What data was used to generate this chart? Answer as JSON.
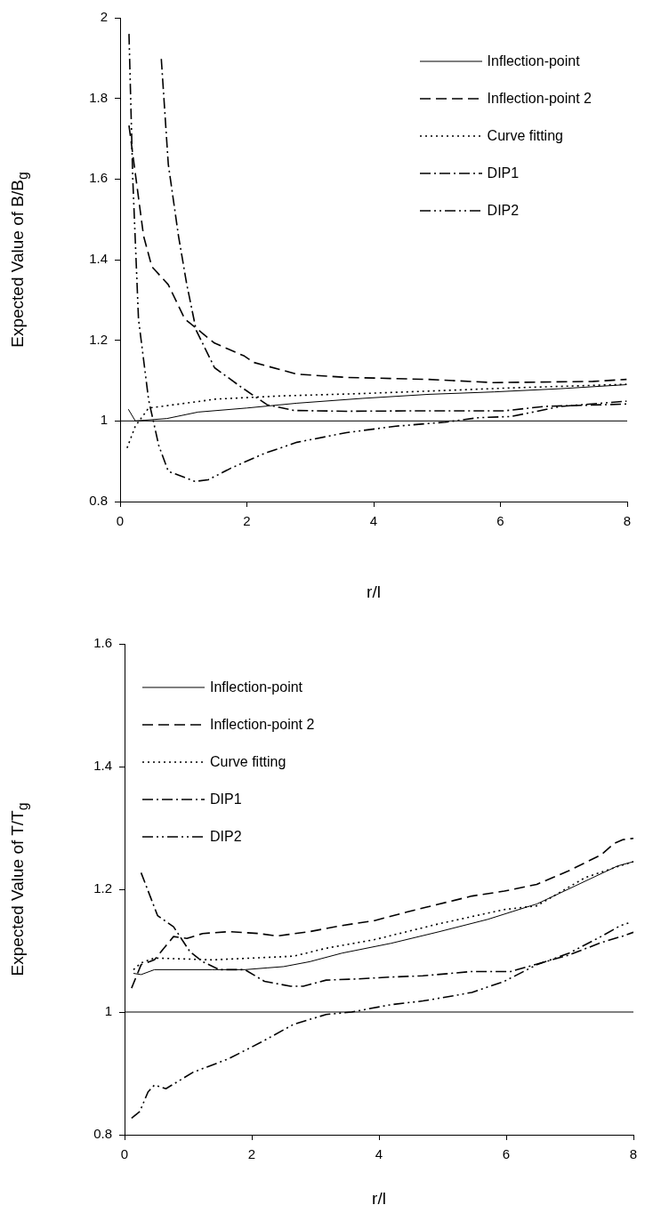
{
  "chart_data": [
    {
      "type": "line",
      "xlabel": "r/l",
      "ylabel": "Expected Value of B/B$_{g}$",
      "xlim": [
        0,
        8
      ],
      "xticks": [
        0,
        2,
        4,
        6,
        8
      ],
      "ylim": [
        0.8,
        2
      ],
      "yticks": [
        0.8,
        1,
        1.2,
        1.4,
        1.6,
        1.8,
        2
      ],
      "grid": false,
      "legend": "top right",
      "marker": "none",
      "ref_lines": [
        {
          "axis": "y",
          "value": 1
        }
      ],
      "series": [
        {
          "name": "Inflection-point",
          "color": "#000000",
          "line_style": "solid",
          "x": [
            0.13,
            0.24,
            0.74,
            1.23,
            2.0,
            2.79,
            3.83,
            4.87,
            5.9,
            6.95,
            7.99
          ],
          "values": [
            1.029,
            1.0,
            1.006,
            1.022,
            1.032,
            1.044,
            1.056,
            1.066,
            1.072,
            1.08,
            1.09
          ]
        },
        {
          "name": "Inflection-point 2",
          "color": "#000000",
          "line_style": "dashed",
          "x": [
            0.14,
            0.37,
            0.5,
            0.76,
            1.02,
            1.49,
            1.96,
            2.11,
            2.79,
            3.57,
            4.87,
            5.9,
            7.46,
            7.99
          ],
          "values": [
            1.733,
            1.459,
            1.383,
            1.338,
            1.253,
            1.193,
            1.161,
            1.145,
            1.116,
            1.108,
            1.103,
            1.095,
            1.098,
            1.103
          ]
        },
        {
          "name": "Curve fitting",
          "color": "#000000",
          "line_style": "dotted",
          "x": [
            0.11,
            0.24,
            0.45,
            1.23,
            1.49,
            2.53,
            3.83,
            4.87,
            6.17,
            7.21,
            7.99
          ],
          "values": [
            0.933,
            0.987,
            1.032,
            1.048,
            1.054,
            1.062,
            1.068,
            1.074,
            1.082,
            1.087,
            1.091
          ]
        },
        {
          "name": "DIP1",
          "color": "#000000",
          "line_style": "dashdot",
          "x": [
            0.65,
            0.76,
            0.92,
            1.05,
            1.2,
            1.49,
            1.91,
            2.32,
            2.74,
            3.57,
            4.61,
            6.06,
            6.69,
            7.99
          ],
          "values": [
            1.898,
            1.637,
            1.46,
            1.34,
            1.225,
            1.132,
            1.084,
            1.04,
            1.026,
            1.024,
            1.025,
            1.025,
            1.036,
            1.042
          ]
        },
        {
          "name": "DIP2",
          "color": "#000000",
          "line_style": "dashdotdot",
          "x": [
            0.14,
            0.2,
            0.29,
            0.45,
            0.61,
            0.76,
            1.18,
            1.39,
            1.75,
            2.27,
            2.79,
            3.57,
            4.35,
            5.13,
            5.65,
            6.17,
            6.95,
            7.99
          ],
          "values": [
            1.96,
            1.6,
            1.253,
            1.052,
            0.939,
            0.875,
            0.85,
            0.854,
            0.883,
            0.919,
            0.947,
            0.971,
            0.987,
            0.997,
            1.008,
            1.011,
            1.036,
            1.049
          ]
        }
      ]
    },
    {
      "type": "line",
      "xlabel": "r/l",
      "ylabel": "Expected Value of T/T$_{g}$",
      "xlim": [
        0,
        8
      ],
      "xticks": [
        0,
        2,
        4,
        6,
        8
      ],
      "ylim": [
        0.8,
        1.6
      ],
      "yticks": [
        0.8,
        1,
        1.2,
        1.4,
        1.6
      ],
      "grid": false,
      "legend": "top left",
      "marker": "none",
      "ref_lines": [
        {
          "axis": "y",
          "value": 1
        }
      ],
      "series": [
        {
          "name": "Inflection-point",
          "color": "#000000",
          "line_style": "solid",
          "x": [
            0.14,
            0.26,
            0.47,
            1.38,
            1.89,
            2.25,
            2.5,
            2.91,
            3.42,
            4.19,
            4.95,
            5.71,
            6.32,
            6.48,
            7.75,
            8.0
          ],
          "values": [
            1.063,
            1.061,
            1.069,
            1.069,
            1.069,
            1.072,
            1.074,
            1.082,
            1.096,
            1.112,
            1.131,
            1.151,
            1.171,
            1.176,
            1.238,
            1.245
          ]
        },
        {
          "name": "Inflection-point 2",
          "color": "#000000",
          "line_style": "dashed",
          "x": [
            0.11,
            0.26,
            0.47,
            0.77,
            0.98,
            1.23,
            1.64,
            2.1,
            2.4,
            2.91,
            3.42,
            3.93,
            4.44,
            4.75,
            5.46,
            5.97,
            6.48,
            6.98,
            7.49,
            7.7,
            7.84,
            8.0
          ],
          "values": [
            1.039,
            1.077,
            1.085,
            1.123,
            1.12,
            1.128,
            1.131,
            1.128,
            1.124,
            1.131,
            1.141,
            1.149,
            1.163,
            1.171,
            1.189,
            1.197,
            1.208,
            1.23,
            1.256,
            1.275,
            1.281,
            1.283
          ]
        },
        {
          "name": "Curve fitting",
          "color": "#000000",
          "line_style": "dotted",
          "x": [
            0.14,
            0.26,
            0.47,
            1.38,
            2.66,
            3.17,
            3.93,
            4.95,
            5.97,
            6.48,
            7.24,
            7.84,
            8.0
          ],
          "values": [
            1.069,
            1.08,
            1.088,
            1.085,
            1.091,
            1.104,
            1.118,
            1.144,
            1.167,
            1.173,
            1.219,
            1.24,
            1.245
          ]
        },
        {
          "name": "DIP1",
          "color": "#000000",
          "line_style": "dashdot",
          "x": [
            0.26,
            0.52,
            0.77,
            1.03,
            1.23,
            1.49,
            1.89,
            2.2,
            2.61,
            2.81,
            3.17,
            3.68,
            4.19,
            4.69,
            5.46,
            6.07,
            6.48,
            6.99,
            7.49,
            7.84,
            8.0
          ],
          "values": [
            1.227,
            1.157,
            1.139,
            1.098,
            1.082,
            1.069,
            1.069,
            1.05,
            1.042,
            1.042,
            1.052,
            1.054,
            1.057,
            1.059,
            1.066,
            1.066,
            1.078,
            1.093,
            1.113,
            1.124,
            1.13
          ]
        },
        {
          "name": "DIP2",
          "color": "#000000",
          "line_style": "dashdotdot",
          "x": [
            0.11,
            0.24,
            0.37,
            0.47,
            0.65,
            1.08,
            1.64,
            2.15,
            2.66,
            3.17,
            3.57,
            4.19,
            4.69,
            5.2,
            5.46,
            5.97,
            6.48,
            6.99,
            7.49,
            7.8,
            7.92
          ],
          "values": [
            0.827,
            0.838,
            0.87,
            0.881,
            0.875,
            0.902,
            0.924,
            0.951,
            0.98,
            0.996,
            1.0,
            1.012,
            1.018,
            1.027,
            1.032,
            1.05,
            1.077,
            1.096,
            1.123,
            1.141,
            1.145
          ]
        }
      ]
    }
  ]
}
